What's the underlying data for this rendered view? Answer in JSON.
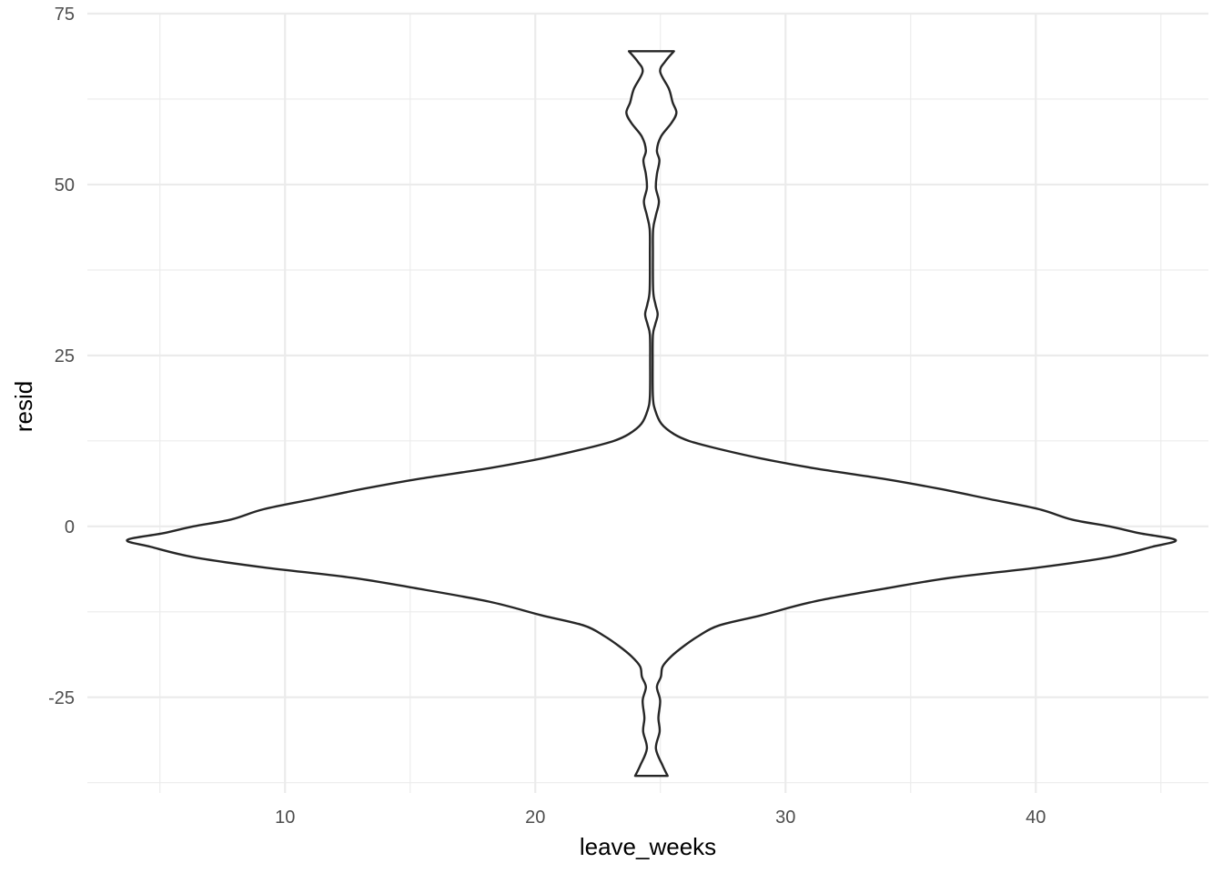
{
  "chart_data": {
    "type": "violin",
    "title": "",
    "xlabel": "leave_weeks",
    "ylabel": "resid",
    "xlim": [
      2.1,
      46.9
    ],
    "ylim": [
      -39,
      75
    ],
    "x_ticks": [
      10,
      20,
      30,
      40
    ],
    "x_tick_labels": [
      "10",
      "20",
      "30",
      "40"
    ],
    "x_minor": [
      5,
      15,
      25,
      35,
      45
    ],
    "y_ticks": [
      -25,
      0,
      25,
      50,
      75
    ],
    "y_tick_labels": [
      "-25",
      "0",
      "25",
      "50",
      "75"
    ],
    "y_minor": [
      -37.5,
      -12.5,
      12.5,
      37.5,
      62.5
    ],
    "grid": true,
    "legend": "none",
    "violin": {
      "center_x": 24.64,
      "outline_color": "#262626",
      "fill_color": "#ffffff",
      "profile": [
        {
          "y": -36.5,
          "half_width": 0.65
        },
        {
          "y": -35.0,
          "half_width": 0.45
        },
        {
          "y": -32.5,
          "half_width": 0.18
        },
        {
          "y": -30.0,
          "half_width": 0.33
        },
        {
          "y": -28.0,
          "half_width": 0.28
        },
        {
          "y": -25.5,
          "half_width": 0.35
        },
        {
          "y": -23.5,
          "half_width": 0.22
        },
        {
          "y": -22.0,
          "half_width": 0.38
        },
        {
          "y": -20.5,
          "half_width": 0.45
        },
        {
          "y": -19.0,
          "half_width": 0.8
        },
        {
          "y": -17.5,
          "half_width": 1.3
        },
        {
          "y": -16.0,
          "half_width": 1.9
        },
        {
          "y": -14.5,
          "half_width": 2.7
        },
        {
          "y": -13.0,
          "half_width": 4.4
        },
        {
          "y": -11.0,
          "half_width": 6.5
        },
        {
          "y": -9.0,
          "half_width": 9.5
        },
        {
          "y": -7.5,
          "half_width": 12.0
        },
        {
          "y": -6.0,
          "half_width": 15.5
        },
        {
          "y": -4.5,
          "half_width": 18.3
        },
        {
          "y": -3.0,
          "half_width": 20.0
        },
        {
          "y": -2.0,
          "half_width": 20.95
        },
        {
          "y": -1.0,
          "half_width": 19.5
        },
        {
          "y": 0.0,
          "half_width": 18.3
        },
        {
          "y": 1.0,
          "half_width": 16.8
        },
        {
          "y": 2.5,
          "half_width": 15.5
        },
        {
          "y": 4.0,
          "half_width": 13.5
        },
        {
          "y": 5.5,
          "half_width": 11.5
        },
        {
          "y": 7.0,
          "half_width": 9.2
        },
        {
          "y": 8.5,
          "half_width": 6.5
        },
        {
          "y": 10.0,
          "half_width": 4.3
        },
        {
          "y": 11.5,
          "half_width": 2.5
        },
        {
          "y": 12.5,
          "half_width": 1.5
        },
        {
          "y": 13.5,
          "half_width": 0.9
        },
        {
          "y": 15.0,
          "half_width": 0.4
        },
        {
          "y": 17.0,
          "half_width": 0.15
        },
        {
          "y": 19.0,
          "half_width": 0.06
        },
        {
          "y": 24.0,
          "half_width": 0.05
        },
        {
          "y": 28.0,
          "half_width": 0.06
        },
        {
          "y": 29.5,
          "half_width": 0.15
        },
        {
          "y": 31.0,
          "half_width": 0.25
        },
        {
          "y": 32.5,
          "half_width": 0.16
        },
        {
          "y": 34.5,
          "half_width": 0.07
        },
        {
          "y": 40.0,
          "half_width": 0.06
        },
        {
          "y": 43.5,
          "half_width": 0.07
        },
        {
          "y": 45.5,
          "half_width": 0.18
        },
        {
          "y": 47.5,
          "half_width": 0.3
        },
        {
          "y": 49.5,
          "half_width": 0.18
        },
        {
          "y": 51.5,
          "half_width": 0.22
        },
        {
          "y": 53.5,
          "half_width": 0.32
        },
        {
          "y": 55.0,
          "half_width": 0.22
        },
        {
          "y": 57.0,
          "half_width": 0.38
        },
        {
          "y": 59.0,
          "half_width": 0.8
        },
        {
          "y": 60.5,
          "half_width": 1.0
        },
        {
          "y": 62.0,
          "half_width": 0.85
        },
        {
          "y": 64.0,
          "half_width": 0.7
        },
        {
          "y": 66.5,
          "half_width": 0.35
        },
        {
          "y": 68.0,
          "half_width": 0.55
        },
        {
          "y": 69.5,
          "half_width": 0.9
        }
      ]
    }
  }
}
